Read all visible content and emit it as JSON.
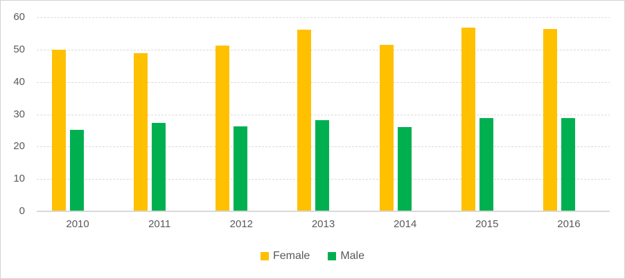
{
  "chart_data": {
    "type": "bar",
    "title": "",
    "categories": [
      "2010",
      "2011",
      "2012",
      "2013",
      "2014",
      "2015",
      "2016"
    ],
    "series": [
      {
        "name": "Female",
        "color": "#FFC000",
        "values": [
          49.8,
          48.7,
          51.0,
          55.9,
          51.3,
          56.6,
          56.2
        ]
      },
      {
        "name": "Male",
        "color": "#00B050",
        "values": [
          25.0,
          27.2,
          26.1,
          27.9,
          25.8,
          28.7,
          28.6
        ]
      }
    ],
    "ylim": [
      0,
      60
    ],
    "yticks": [
      0,
      10,
      20,
      30,
      40,
      50,
      60
    ],
    "grid": true,
    "legend_position": "bottom"
  },
  "colors": {
    "axis_text": "#595959",
    "gridline": "#D9D9D9",
    "axis_line": "#D9D9D9",
    "background": "#FFFFFF"
  }
}
